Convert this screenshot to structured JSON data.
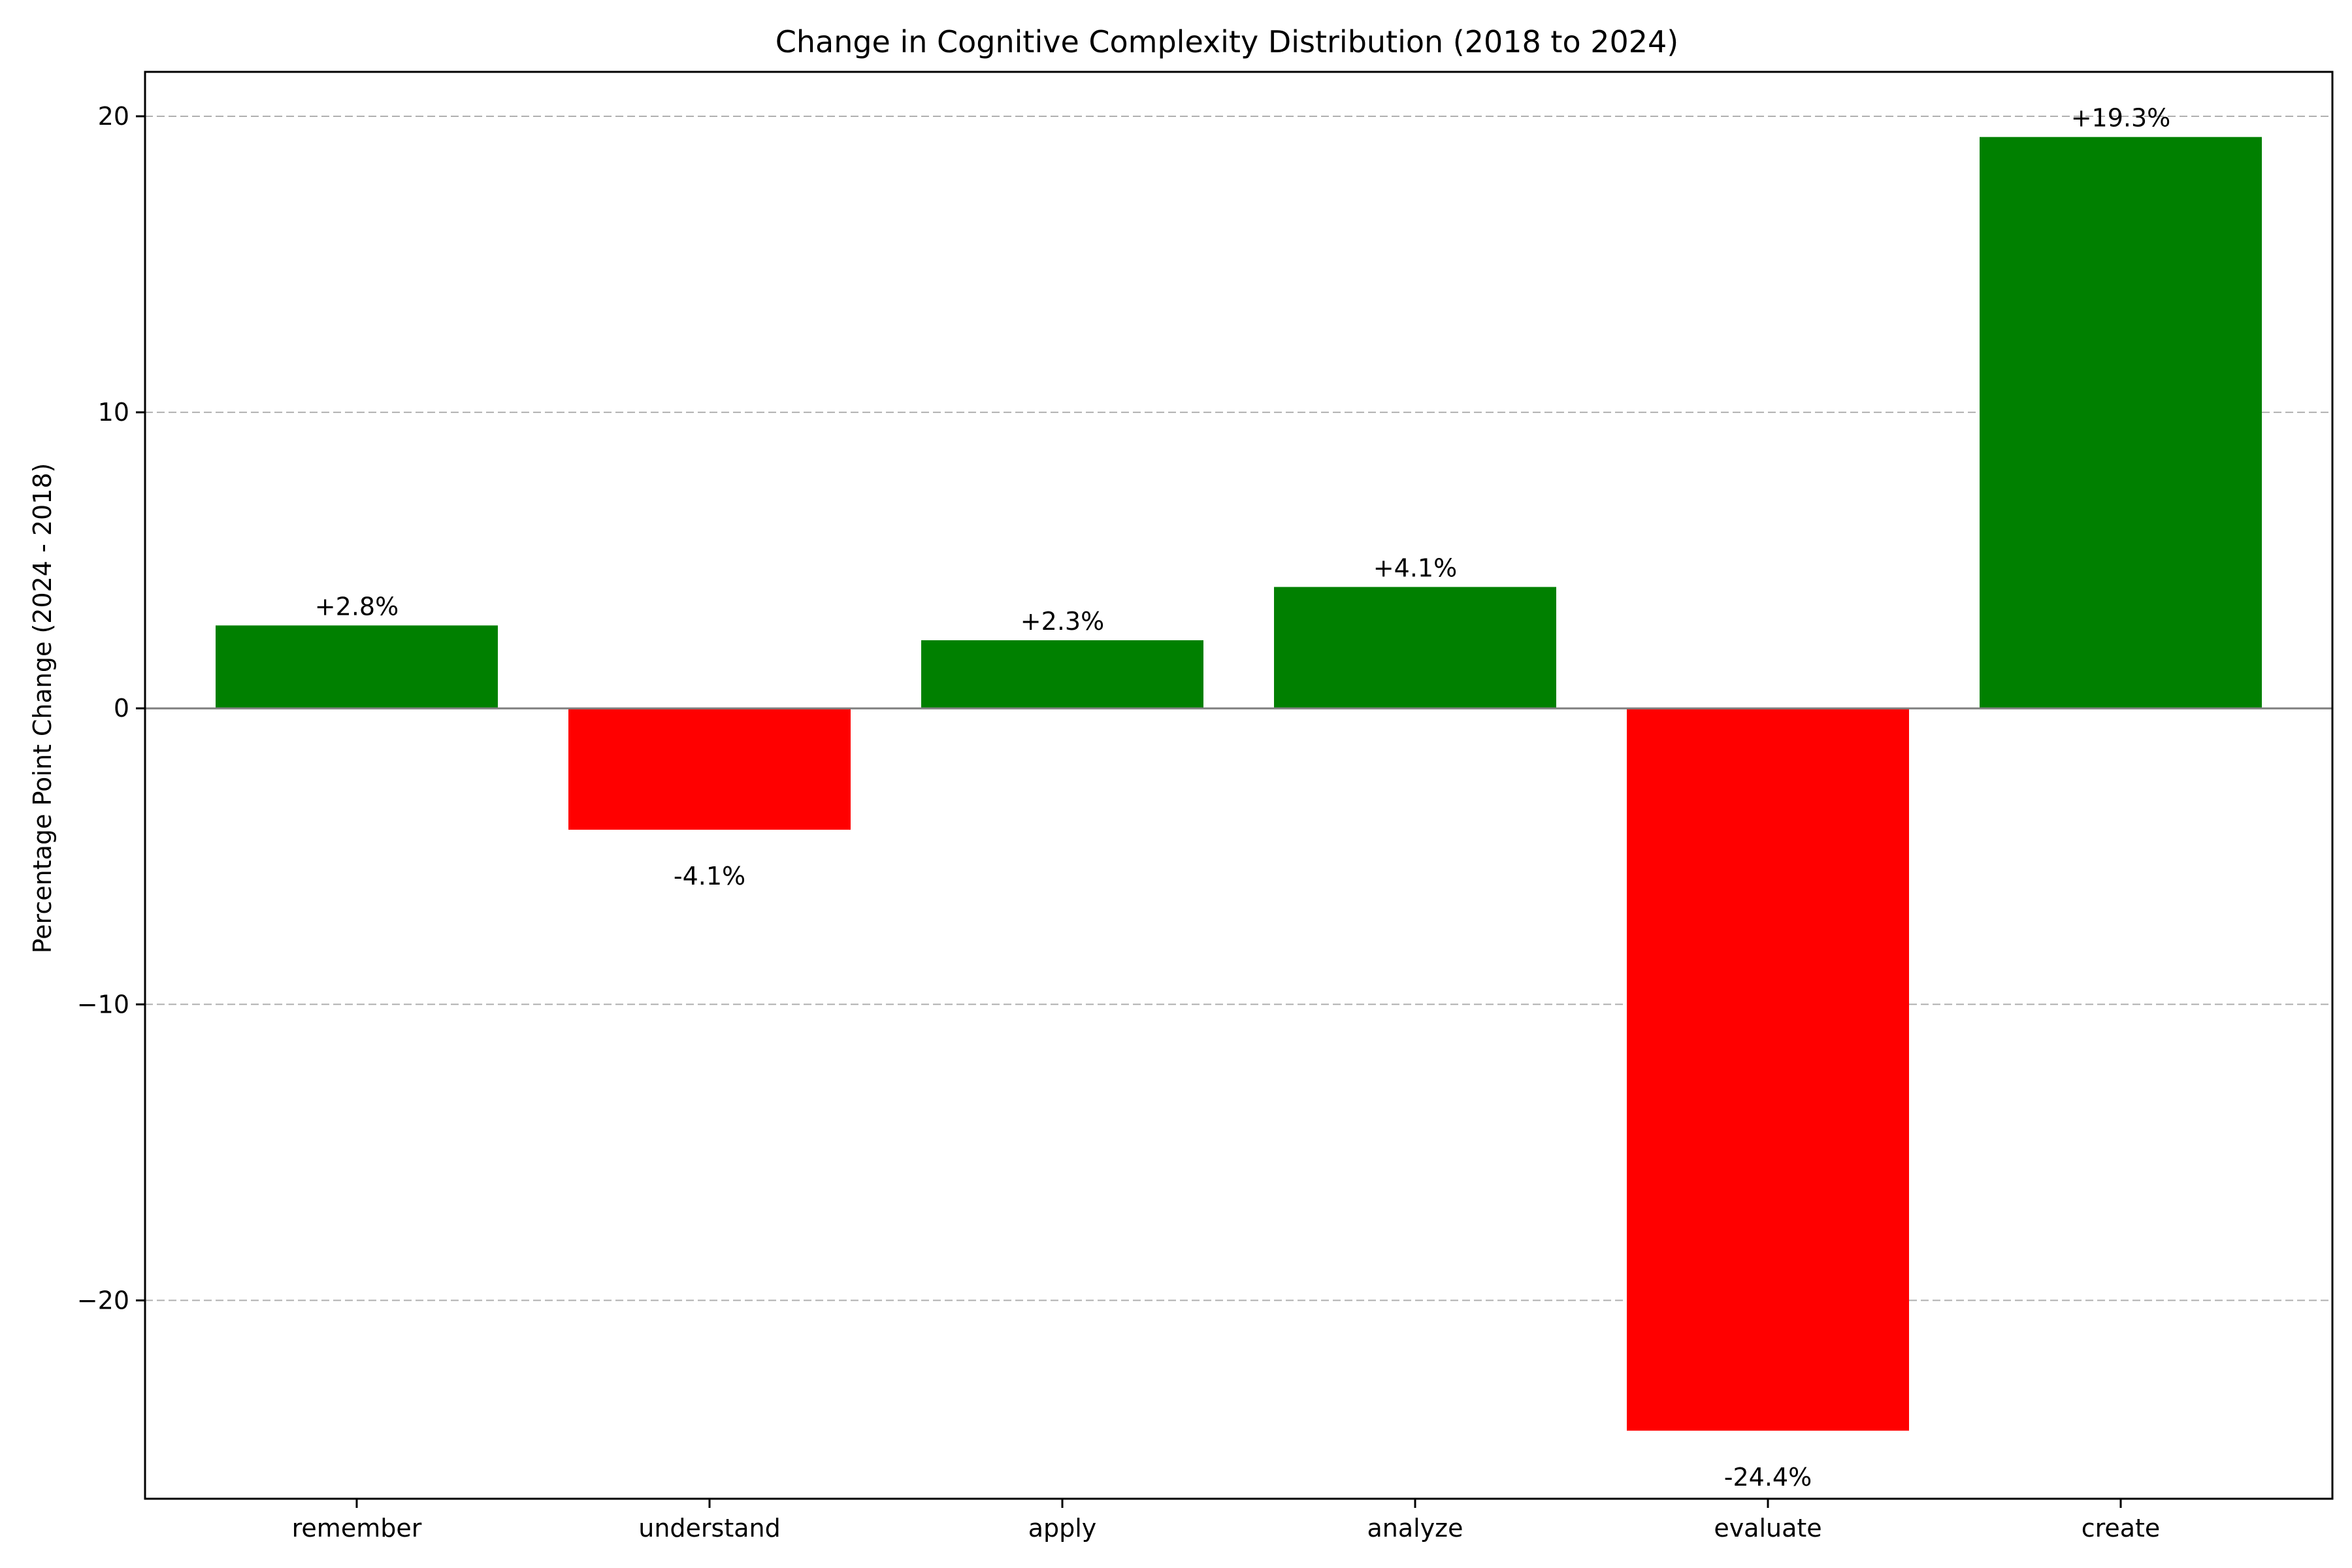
{
  "chart_data": {
    "type": "bar",
    "title": "Change in Cognitive Complexity Distribution (2018 to 2024)",
    "xlabel": "",
    "ylabel": "Percentage Point Change (2024 - 2018)",
    "categories": [
      "remember",
      "understand",
      "apply",
      "analyze",
      "evaluate",
      "create"
    ],
    "values": [
      2.8,
      -4.1,
      2.3,
      4.1,
      -24.4,
      19.3
    ],
    "data_labels": [
      "+2.8%",
      "-4.1%",
      "+2.3%",
      "+4.1%",
      "-24.4%",
      "+19.3%"
    ],
    "ylim": [
      -26.7,
      21.5
    ],
    "yticks": [
      -20,
      -10,
      0,
      10,
      20
    ],
    "ytick_labels": [
      "−20",
      "−10",
      "0",
      "10",
      "20"
    ],
    "grid": "y-dashed",
    "legend": "none",
    "colors": {
      "positive": "#008000",
      "negative": "#ff0000",
      "grid": "#b0b0b0",
      "zero_line": "#808080"
    }
  }
}
